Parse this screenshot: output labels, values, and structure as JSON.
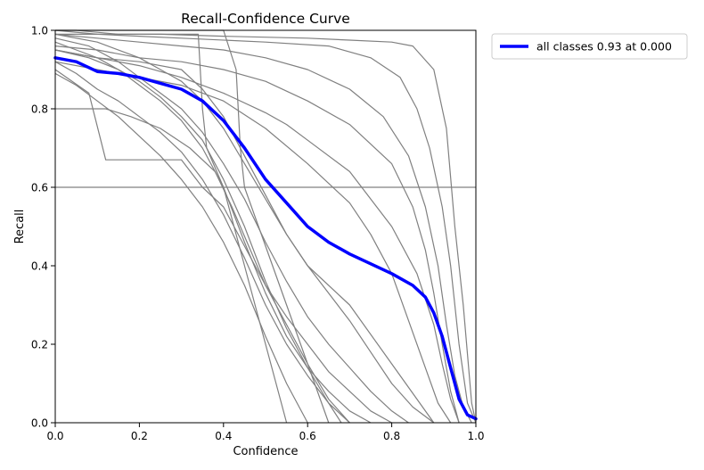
{
  "chart_data": {
    "type": "line",
    "title": "Recall-Confidence Curve",
    "xlabel": "Confidence",
    "ylabel": "Recall",
    "xlim": [
      0.0,
      1.0
    ],
    "ylim": [
      0.0,
      1.0
    ],
    "xticks": [
      "0.0",
      "0.2",
      "0.4",
      "0.6",
      "0.8",
      "1.0"
    ],
    "yticks": [
      "0.0",
      "0.2",
      "0.4",
      "0.6",
      "0.8",
      "1.0"
    ],
    "grid": false,
    "legend": {
      "placement": "outside top-right"
    },
    "series": [
      {
        "name": "all classes 0.93 at 0.000",
        "color": "#0000ff",
        "x": [
          0.0,
          0.05,
          0.1,
          0.15,
          0.2,
          0.25,
          0.3,
          0.35,
          0.4,
          0.45,
          0.5,
          0.55,
          0.6,
          0.65,
          0.7,
          0.75,
          0.8,
          0.85,
          0.88,
          0.9,
          0.92,
          0.94,
          0.96,
          0.98,
          1.0
        ],
        "y": [
          0.93,
          0.92,
          0.895,
          0.89,
          0.88,
          0.865,
          0.85,
          0.82,
          0.77,
          0.7,
          0.62,
          0.56,
          0.5,
          0.46,
          0.43,
          0.405,
          0.38,
          0.35,
          0.32,
          0.28,
          0.22,
          0.14,
          0.06,
          0.02,
          0.01
        ]
      }
    ],
    "class_series": [
      {
        "color": "#808080",
        "x": [
          0.0,
          0.05,
          0.1,
          0.15,
          0.25,
          0.4,
          0.6,
          0.7,
          0.8,
          0.85,
          0.9,
          0.93,
          0.95,
          0.97,
          0.99,
          1.0
        ],
        "y": [
          1.0,
          1.0,
          0.995,
          0.99,
          0.99,
          0.985,
          0.98,
          0.975,
          0.97,
          0.96,
          0.9,
          0.75,
          0.5,
          0.3,
          0.05,
          0.0
        ]
      },
      {
        "color": "#808080",
        "x": [
          0.0,
          0.1,
          0.2,
          0.3,
          0.5,
          0.65,
          0.75,
          0.82,
          0.86,
          0.89,
          0.92,
          0.94,
          0.96,
          0.98,
          1.0
        ],
        "y": [
          1.0,
          0.99,
          0.985,
          0.98,
          0.97,
          0.96,
          0.93,
          0.88,
          0.8,
          0.7,
          0.55,
          0.4,
          0.2,
          0.05,
          0.0
        ]
      },
      {
        "color": "#808080",
        "x": [
          0.0,
          0.1,
          0.2,
          0.3,
          0.4,
          0.5,
          0.6,
          0.7,
          0.78,
          0.84,
          0.88,
          0.91,
          0.93,
          0.95,
          0.97,
          0.99
        ],
        "y": [
          0.99,
          0.98,
          0.97,
          0.96,
          0.95,
          0.93,
          0.9,
          0.85,
          0.78,
          0.68,
          0.55,
          0.4,
          0.25,
          0.12,
          0.04,
          0.0
        ]
      },
      {
        "color": "#808080",
        "x": [
          0.0,
          0.1,
          0.2,
          0.3,
          0.4,
          0.5,
          0.6,
          0.7,
          0.8,
          0.85,
          0.88,
          0.9,
          0.92,
          0.94,
          0.96
        ],
        "y": [
          0.96,
          0.95,
          0.93,
          0.92,
          0.9,
          0.87,
          0.82,
          0.76,
          0.66,
          0.55,
          0.44,
          0.33,
          0.2,
          0.08,
          0.0
        ]
      },
      {
        "color": "#808080",
        "x": [
          0.0,
          0.1,
          0.2,
          0.3,
          0.4,
          0.5,
          0.55,
          0.6,
          0.7,
          0.8,
          0.86,
          0.9,
          0.92,
          0.94,
          0.96
        ],
        "y": [
          0.95,
          0.93,
          0.91,
          0.88,
          0.84,
          0.79,
          0.76,
          0.72,
          0.64,
          0.5,
          0.38,
          0.25,
          0.15,
          0.06,
          0.0
        ]
      },
      {
        "color": "#808080",
        "x": [
          0.0,
          0.1,
          0.2,
          0.3,
          0.4,
          0.5,
          0.6,
          0.7,
          0.75,
          0.8,
          0.84,
          0.88,
          0.91,
          0.94
        ],
        "y": [
          0.92,
          0.9,
          0.88,
          0.86,
          0.82,
          0.75,
          0.66,
          0.56,
          0.48,
          0.38,
          0.26,
          0.14,
          0.05,
          0.0
        ]
      },
      {
        "color": "#808080",
        "x": [
          0.0,
          0.1,
          0.2,
          0.25,
          0.3,
          0.35,
          0.4,
          0.45,
          0.5,
          0.55,
          0.6,
          0.65,
          0.7,
          0.75,
          0.8,
          0.85,
          0.9
        ],
        "y": [
          0.99,
          0.97,
          0.93,
          0.9,
          0.87,
          0.82,
          0.75,
          0.66,
          0.57,
          0.48,
          0.4,
          0.33,
          0.26,
          0.18,
          0.1,
          0.04,
          0.0
        ]
      },
      {
        "color": "#808080",
        "x": [
          0.0,
          0.08,
          0.15,
          0.2,
          0.25,
          0.3,
          0.35,
          0.4,
          0.45,
          0.5,
          0.55,
          0.6,
          0.65,
          0.7,
          0.75,
          0.8,
          0.84
        ],
        "y": [
          0.98,
          0.96,
          0.92,
          0.88,
          0.84,
          0.8,
          0.74,
          0.66,
          0.57,
          0.46,
          0.36,
          0.27,
          0.2,
          0.14,
          0.08,
          0.03,
          0.0
        ]
      },
      {
        "color": "#808080",
        "x": [
          0.0,
          0.08,
          0.12,
          0.2,
          0.3,
          0.35,
          0.4,
          0.45,
          0.5,
          0.55,
          0.6,
          0.65,
          0.7,
          0.75,
          0.8
        ],
        "y": [
          0.9,
          0.84,
          0.67,
          0.67,
          0.67,
          0.6,
          0.55,
          0.45,
          0.35,
          0.27,
          0.2,
          0.13,
          0.08,
          0.03,
          0.0
        ]
      },
      {
        "color": "#808080",
        "x": [
          0.0,
          0.05,
          0.1,
          0.15,
          0.2,
          0.25,
          0.3,
          0.35,
          0.4,
          0.45,
          0.5,
          0.55,
          0.6,
          0.65,
          0.7,
          0.75
        ],
        "y": [
          0.97,
          0.95,
          0.93,
          0.9,
          0.86,
          0.82,
          0.77,
          0.7,
          0.6,
          0.46,
          0.33,
          0.22,
          0.14,
          0.08,
          0.03,
          0.0
        ]
      },
      {
        "color": "#808080",
        "x": [
          0.0,
          0.05,
          0.1,
          0.15,
          0.2,
          0.25,
          0.3,
          0.35,
          0.4,
          0.45,
          0.5,
          0.55,
          0.6,
          0.65,
          0.7
        ],
        "y": [
          0.92,
          0.89,
          0.85,
          0.82,
          0.78,
          0.74,
          0.69,
          0.62,
          0.53,
          0.42,
          0.3,
          0.2,
          0.12,
          0.05,
          0.0
        ]
      },
      {
        "color": "#808080",
        "x": [
          0.0,
          0.08,
          0.15,
          0.2,
          0.25,
          0.3,
          0.35,
          0.4,
          0.45,
          0.5,
          0.55,
          0.6,
          0.65,
          0.68
        ],
        "y": [
          0.95,
          0.93,
          0.9,
          0.87,
          0.83,
          0.78,
          0.72,
          0.62,
          0.5,
          0.36,
          0.24,
          0.14,
          0.05,
          0.0
        ]
      },
      {
        "color": "#808080",
        "x": [
          0.0,
          0.05,
          0.1,
          0.15,
          0.2,
          0.25,
          0.3,
          0.35,
          0.4,
          0.45,
          0.5,
          0.55,
          0.6
        ],
        "y": [
          0.89,
          0.86,
          0.82,
          0.78,
          0.73,
          0.68,
          0.62,
          0.55,
          0.46,
          0.35,
          0.22,
          0.1,
          0.0
        ]
      },
      {
        "color": "#808080",
        "x": [
          0.0,
          0.08,
          0.12,
          0.18,
          0.25,
          0.32,
          0.38,
          0.42,
          0.46,
          0.5,
          0.55,
          0.6,
          0.65,
          0.7
        ],
        "y": [
          0.8,
          0.8,
          0.8,
          0.78,
          0.75,
          0.7,
          0.64,
          0.55,
          0.45,
          0.35,
          0.25,
          0.15,
          0.06,
          0.0
        ]
      },
      {
        "color": "#808080",
        "x": [
          0.0,
          0.05,
          0.1,
          0.2,
          0.3,
          0.35,
          0.4,
          0.45,
          0.5,
          0.55,
          0.6,
          0.7,
          0.8,
          0.9
        ],
        "y": [
          0.95,
          0.94,
          0.93,
          0.92,
          0.9,
          0.85,
          0.78,
          0.68,
          0.58,
          0.48,
          0.4,
          0.3,
          0.15,
          0.0
        ]
      },
      {
        "color": "#808080",
        "x": [
          0.0,
          0.2,
          0.4,
          0.5,
          0.55,
          0.6,
          0.7,
          0.8,
          0.85,
          0.9,
          0.95,
          1.0
        ],
        "y": [
          0.6,
          0.6,
          0.6,
          0.6,
          0.6,
          0.6,
          0.6,
          0.6,
          0.6,
          0.6,
          0.6,
          0.6
        ]
      },
      {
        "color": "#808080",
        "x": [
          0.0,
          0.4,
          0.43,
          0.44,
          0.45,
          0.5,
          0.55,
          0.6,
          0.65
        ],
        "y": [
          1.0,
          1.0,
          0.9,
          0.7,
          0.6,
          0.45,
          0.3,
          0.15,
          0.0
        ]
      },
      {
        "color": "#808080",
        "x": [
          0.0,
          0.34,
          0.35,
          0.36,
          0.4,
          0.45,
          0.5,
          0.55
        ],
        "y": [
          0.99,
          0.99,
          0.8,
          0.7,
          0.6,
          0.4,
          0.2,
          0.0
        ]
      }
    ]
  }
}
